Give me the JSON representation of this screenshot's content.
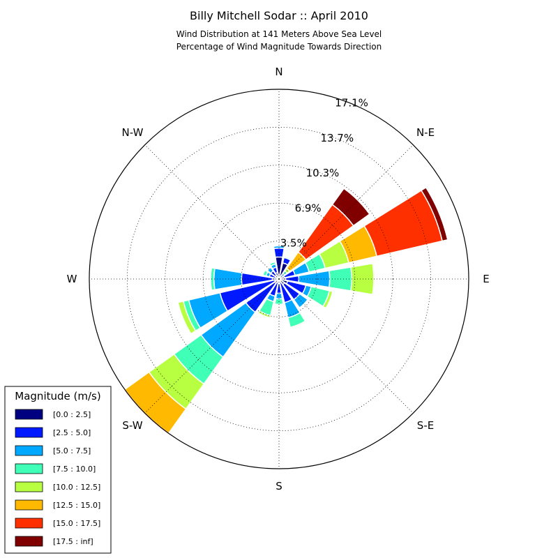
{
  "chart_data": {
    "type": "windrose",
    "title": "Billy Mitchell Sodar :: April 2010",
    "subtitle_lines": [
      "Wind Distribution at 141 Meters Above Sea Level",
      "Percentage of Wind Magnitude Towards Direction"
    ],
    "directions": [
      "N",
      "N-E",
      "E",
      "S-E",
      "S",
      "S-W",
      "W",
      "N-W"
    ],
    "radial_ticks": [
      "3.5%",
      "6.9%",
      "10.3%",
      "13.7%",
      "17.1%"
    ],
    "radial_tick_values": [
      3.44,
      6.88,
      10.32,
      13.76,
      17.2
    ],
    "rmax": 17.2,
    "legend_title": "Magnitude (m/s)",
    "bins": [
      {
        "label": "[0.0 : 2.5]",
        "color": "#000080"
      },
      {
        "label": "[2.5 : 5.0]",
        "color": "#0019ff"
      },
      {
        "label": "[5.0 : 7.5]",
        "color": "#00a9ff"
      },
      {
        "label": "[7.5 : 10.0]",
        "color": "#40ffb7"
      },
      {
        "label": "[10.0 : 12.5]",
        "color": "#b7ff40"
      },
      {
        "label": "[12.5 : 15.0]",
        "color": "#ffb900"
      },
      {
        "label": "[15.0 : 17.5]",
        "color": "#ff3000"
      },
      {
        "label": "[17.5 : inf]",
        "color": "#800000"
      }
    ],
    "sectors": [
      {
        "angle": 0,
        "cum": [
          2.0,
          2.8,
          3.0
        ]
      },
      {
        "angle": 22.5,
        "cum": [
          1.5,
          2.0,
          2.1
        ]
      },
      {
        "angle": 45,
        "cum": [
          0.2,
          0.3,
          0.6,
          0.9,
          1.2,
          3.0,
          8.3,
          10.1
        ]
      },
      {
        "angle": 67.5,
        "cum": [
          0.5,
          1.5,
          2.8,
          4.3,
          6.5,
          9.1,
          15.2,
          15.7
        ]
      },
      {
        "angle": 90,
        "cum": [
          0.6,
          1.8,
          4.6,
          6.6,
          8.6,
          8.7
        ]
      },
      {
        "angle": 112.5,
        "cum": [
          0.8,
          2.5,
          3.0,
          4.7,
          5.0
        ]
      },
      {
        "angle": 135,
        "cum": [
          0.6,
          2.3,
          3.2
        ]
      },
      {
        "angle": 157.5,
        "cum": [
          0.3,
          2.2,
          3.6,
          4.5,
          4.6
        ]
      },
      {
        "angle": 180,
        "cum": [
          0.4,
          1.3,
          1.8,
          2.3
        ]
      },
      {
        "angle": 202.5,
        "cum": [
          0.3,
          1.6,
          2.1,
          3.4,
          3.6,
          3.7
        ]
      },
      {
        "angle": 225,
        "cum": [
          0.5,
          3.7,
          8.7,
          11.7,
          14.5,
          17.2,
          17.3
        ]
      },
      {
        "angle": 247.5,
        "cum": [
          0.4,
          5.5,
          8.4,
          8.9,
          9.4
        ]
      },
      {
        "angle": 270,
        "cum": [
          0.6,
          3.4,
          5.9,
          6.2
        ]
      },
      {
        "angle": 292.5,
        "cum": [
          0.2,
          0.9,
          1.2,
          1.5
        ]
      },
      {
        "angle": 315,
        "cum": [
          0.4,
          0.9,
          1.3
        ]
      },
      {
        "angle": 337.5,
        "cum": [
          0.6,
          1.1,
          1.4,
          1.6
        ]
      }
    ]
  }
}
